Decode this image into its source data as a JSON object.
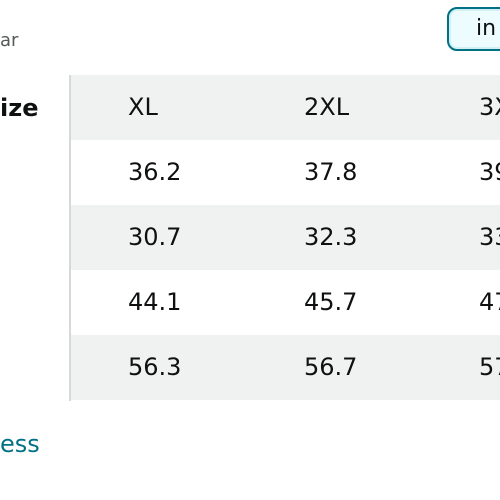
{
  "header": {
    "left_text": "ar",
    "unit_toggle_label": "in"
  },
  "table": {
    "row_header": "ize",
    "columns": [
      "XL",
      "2XL",
      "3X"
    ],
    "rows": [
      [
        "36.2",
        "37.8",
        "39"
      ],
      [
        "30.7",
        "32.3",
        "33"
      ],
      [
        "44.1",
        "45.7",
        "47"
      ],
      [
        "56.3",
        "56.7",
        "57"
      ]
    ]
  },
  "footer": {
    "link_text": "ess"
  }
}
